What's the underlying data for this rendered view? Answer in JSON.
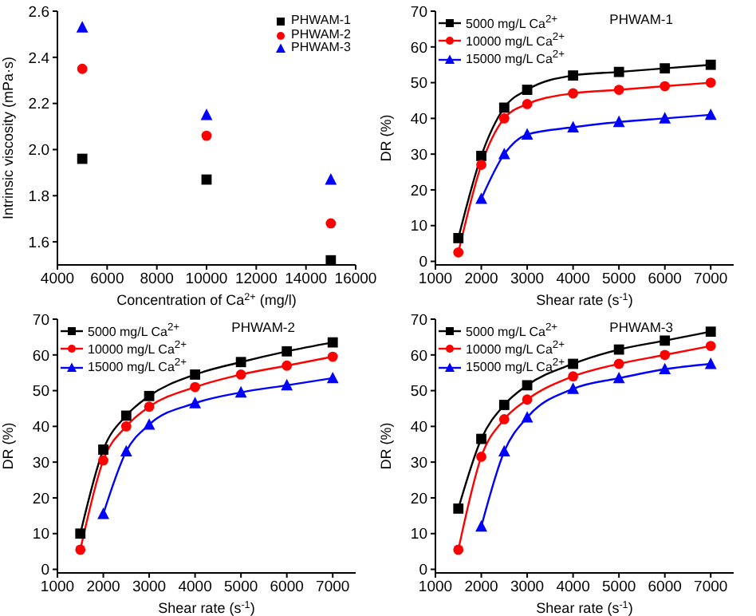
{
  "chart_data": [
    {
      "type": "scatter",
      "xlabel": "Concentration of Ca$^{2+}$ (mg/l)",
      "ylabel": "Intrinsic viscosity (mPa·s)",
      "x": [
        5000,
        10000,
        15000
      ],
      "xlim": [
        4000,
        16000
      ],
      "xticks": [
        4000,
        6000,
        8000,
        10000,
        12000,
        14000,
        16000
      ],
      "ylim": [
        1.5,
        2.6
      ],
      "yticks": [
        1.6,
        1.8,
        {
          "value": 2,
          "label": "2.0"
        },
        2.2,
        2.4,
        2.6
      ],
      "legend": "top right",
      "grid": false,
      "series": [
        {
          "name": "PHWAM-1",
          "color": "#000000",
          "marker": "square",
          "values": [
            1.96,
            1.87,
            1.52
          ]
        },
        {
          "name": "PHWAM-2",
          "color": "#ff0000",
          "marker": "circle",
          "values": [
            2.35,
            2.06,
            1.68
          ]
        },
        {
          "name": "PHWAM-3",
          "color": "#0000ff",
          "marker": "triangle",
          "values": [
            2.53,
            2.15,
            1.87
          ]
        }
      ]
    },
    {
      "type": "line",
      "title": "PHWAM-1",
      "xlabel": "Shear rate (s$^{-1}$)",
      "ylabel": "DR (%)",
      "x": [
        1500,
        2000,
        2500,
        3000,
        4000,
        5000,
        6000,
        7000
      ],
      "xlim": [
        1000,
        7500
      ],
      "xticks": [
        1000,
        2000,
        3000,
        4000,
        5000,
        6000,
        7000
      ],
      "ylim": [
        -1,
        70
      ],
      "yticks": [
        0,
        10,
        20,
        30,
        40,
        50,
        60,
        70
      ],
      "legend": "top left",
      "grid": false,
      "series": [
        {
          "name": "5000 mg/L Ca$^{2+}$",
          "color": "#000000",
          "marker": "square",
          "values": [
            6.5,
            29.5,
            43,
            48,
            52,
            53,
            54,
            55
          ]
        },
        {
          "name": "10000 mg/L Ca$^{2+}$",
          "color": "#ff0000",
          "marker": "circle",
          "values": [
            2.5,
            27,
            40,
            44,
            47,
            48,
            49,
            50
          ]
        },
        {
          "name": "15000 mg/L Ca$^{2+}$",
          "color": "#0000ff",
          "marker": "triangle",
          "x": [
            2000,
            2500,
            3000,
            4000,
            5000,
            6000,
            7000
          ],
          "values": [
            17.5,
            30,
            35.5,
            37.5,
            39,
            40,
            41
          ]
        }
      ]
    },
    {
      "type": "line",
      "title": "PHWAM-2",
      "xlabel": "Shear rate (s$^{-1}$)",
      "ylabel": "DR (%)",
      "x": [
        1500,
        2000,
        2500,
        3000,
        4000,
        5000,
        6000,
        7000
      ],
      "xlim": [
        1000,
        7500
      ],
      "xticks": [
        1000,
        2000,
        3000,
        4000,
        5000,
        6000,
        7000
      ],
      "ylim": [
        -1,
        70
      ],
      "yticks": [
        0,
        10,
        20,
        30,
        40,
        50,
        60,
        70
      ],
      "legend": "top left",
      "grid": false,
      "series": [
        {
          "name": "5000 mg/L Ca$^{2+}$",
          "color": "#000000",
          "marker": "square",
          "values": [
            10,
            33.5,
            43,
            48.5,
            54.5,
            58,
            61,
            63.5
          ]
        },
        {
          "name": "10000 mg/L Ca$^{2+}$",
          "color": "#ff0000",
          "marker": "circle",
          "values": [
            5.5,
            30.5,
            40,
            45.5,
            51,
            54.5,
            57,
            59.5
          ]
        },
        {
          "name": "15000 mg/L Ca$^{2+}$",
          "color": "#0000ff",
          "marker": "triangle",
          "x": [
            2000,
            2500,
            3000,
            4000,
            5000,
            6000,
            7000
          ],
          "values": [
            15.5,
            33,
            40.5,
            46.5,
            49.5,
            51.5,
            53.5
          ]
        }
      ]
    },
    {
      "type": "line",
      "title": "PHWAM-3",
      "xlabel": "Shear rate (s$^{-1}$)",
      "ylabel": "DR (%)",
      "x": [
        1500,
        2000,
        2500,
        3000,
        4000,
        5000,
        6000,
        7000
      ],
      "xlim": [
        1000,
        7500
      ],
      "xticks": [
        1000,
        2000,
        3000,
        4000,
        5000,
        6000,
        7000
      ],
      "ylim": [
        -1,
        70
      ],
      "yticks": [
        0,
        10,
        20,
        30,
        40,
        50,
        60,
        70
      ],
      "legend": "top left",
      "grid": false,
      "series": [
        {
          "name": "5000 mg/L Ca$^{2+}$",
          "color": "#000000",
          "marker": "square",
          "values": [
            17,
            36.5,
            46,
            51.5,
            57.5,
            61.5,
            64,
            66.5
          ]
        },
        {
          "name": "10000 mg/L Ca$^{2+}$",
          "color": "#ff0000",
          "marker": "circle",
          "values": [
            5.5,
            31.5,
            42,
            47.5,
            54,
            57.5,
            60,
            62.5
          ]
        },
        {
          "name": "15000 mg/L Ca$^{2+}$",
          "color": "#0000ff",
          "marker": "triangle",
          "x": [
            2000,
            2500,
            3000,
            4000,
            5000,
            6000,
            7000
          ],
          "values": [
            12,
            33,
            42.5,
            50.5,
            53.5,
            56,
            57.5
          ]
        }
      ]
    }
  ]
}
